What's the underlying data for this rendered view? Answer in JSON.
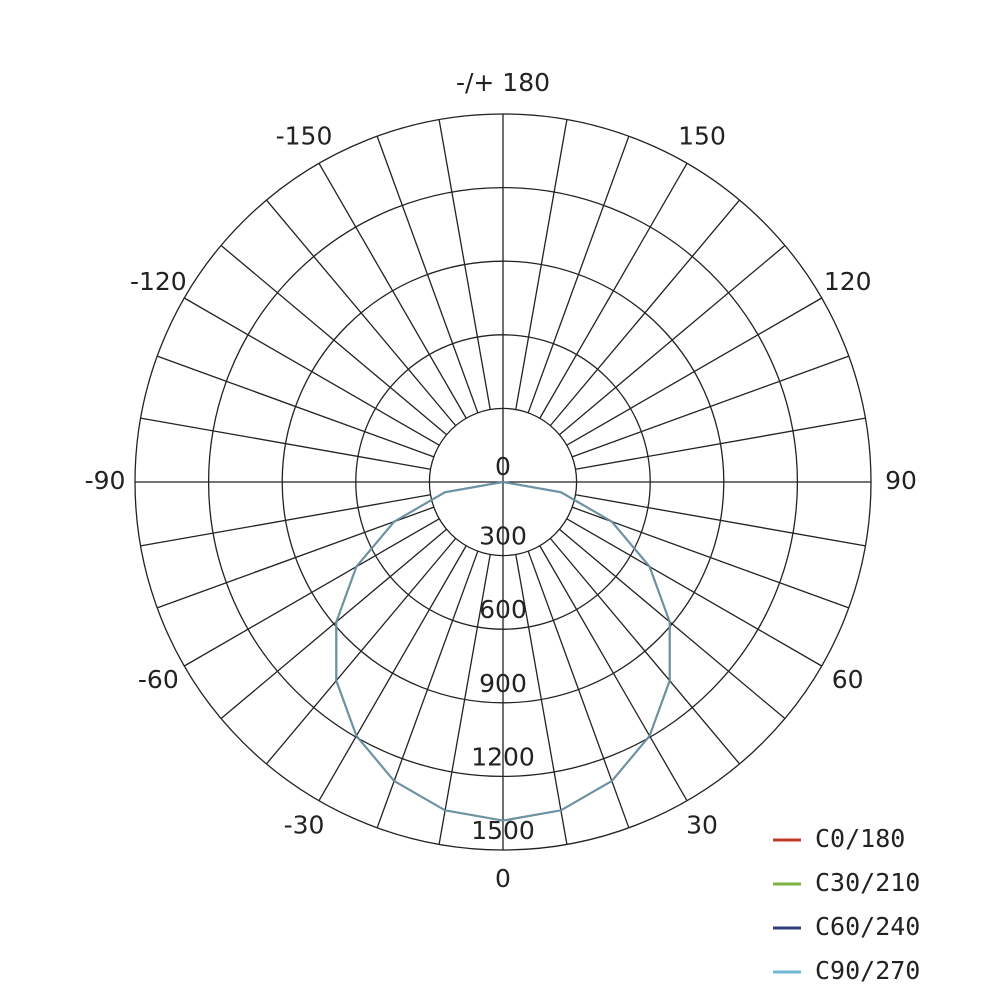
{
  "chart_data": {
    "type": "polar",
    "angles": [
      0,
      10,
      20,
      30,
      40,
      50,
      60,
      70,
      80,
      90
    ],
    "series": [
      {
        "name": "C0/180",
        "color": "#c0392b",
        "values": [
          1380,
          1359,
          1297,
          1195,
          1057,
          887,
          690,
          472,
          240,
          0
        ]
      },
      {
        "name": "C30/210",
        "color": "#7cb342",
        "values": [
          1380,
          1359,
          1297,
          1195,
          1057,
          887,
          690,
          472,
          240,
          0
        ]
      },
      {
        "name": "C60/240",
        "color": "#2c3e7a",
        "values": [
          1380,
          1359,
          1297,
          1195,
          1057,
          887,
          690,
          472,
          240,
          0
        ]
      },
      {
        "name": "C90/270",
        "color": "#6fb7d6",
        "values": [
          1380,
          1359,
          1297,
          1195,
          1057,
          887,
          690,
          472,
          240,
          0
        ]
      }
    ],
    "rlim": [
      0,
      1500
    ],
    "rticks": [
      0,
      300,
      600,
      900,
      1200,
      1500
    ],
    "thetaticks": [
      0,
      30,
      60,
      90,
      120,
      150,
      {
        "value": 180,
        "label": "-/+ 180"
      },
      -150,
      -120,
      -90,
      -60,
      -30
    ],
    "theta_grid_step": 10,
    "grid": true
  }
}
